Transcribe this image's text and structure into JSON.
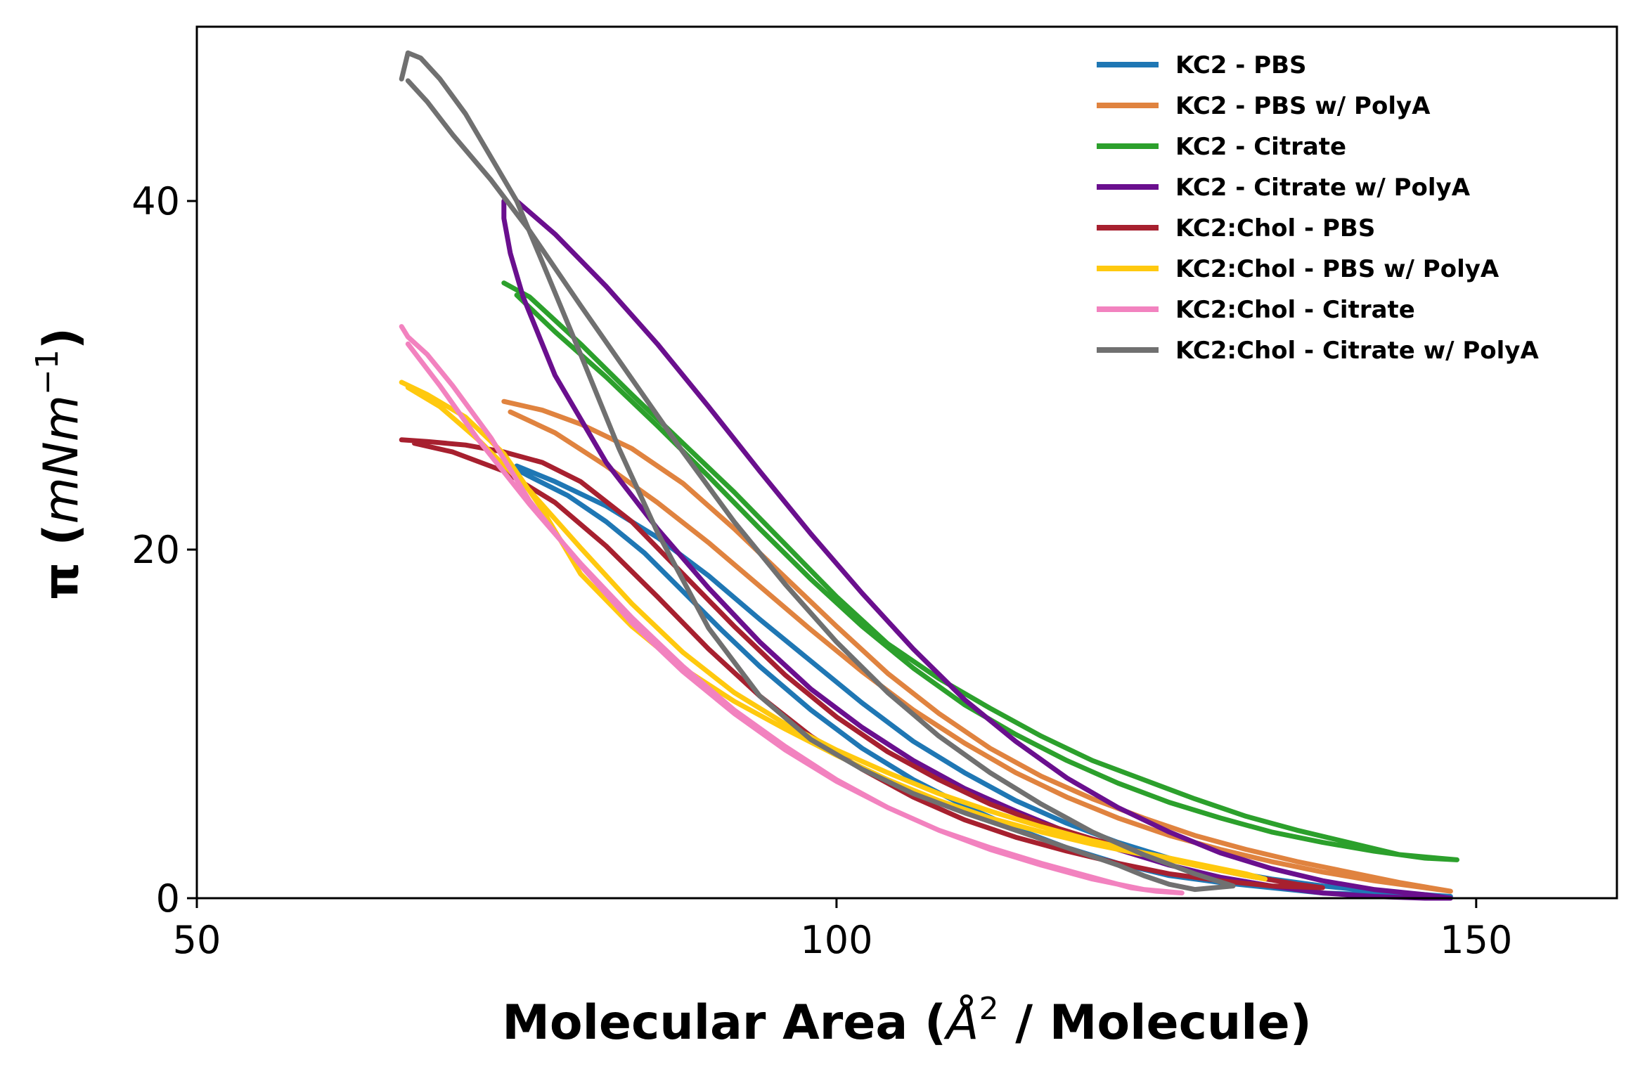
{
  "chart_data": {
    "type": "line",
    "xlabel_parts": [
      "Molecular Area (",
      "Å",
      "2",
      " / Molecule)"
    ],
    "ylabel_parts": [
      "π (",
      "mNm",
      "−1",
      ")"
    ],
    "xlim": [
      50,
      161
    ],
    "ylim": [
      0,
      50
    ],
    "xticks": [
      50,
      100,
      150
    ],
    "yticks": [
      0,
      20,
      40
    ],
    "grid": false,
    "legend_position": "top-right",
    "series": [
      {
        "name": "KC2 - PBS",
        "color": "#1f77b4",
        "x": [
          74,
          76,
          79,
          82,
          85,
          88,
          91,
          94,
          98,
          102,
          106,
          110,
          114,
          118,
          122,
          126,
          130,
          134,
          138,
          142,
          146,
          148,
          146,
          142,
          138,
          134,
          130,
          126,
          122,
          118,
          114,
          110,
          106,
          102,
          98,
          94,
          90,
          86,
          82,
          78,
          75
        ],
        "y": [
          25,
          24.2,
          23.1,
          21.6,
          19.8,
          17.6,
          15.4,
          13.3,
          10.8,
          8.6,
          6.8,
          5.3,
          4.0,
          2.9,
          2.0,
          1.3,
          0.9,
          0.6,
          0.3,
          0.2,
          0.1,
          0.1,
          0.2,
          0.4,
          0.7,
          1.1,
          1.6,
          2.3,
          3.2,
          4.3,
          5.6,
          7.2,
          9.0,
          11.2,
          13.6,
          16.0,
          18.5,
          20.7,
          22.5,
          23.9,
          24.8
        ]
      },
      {
        "name": "KC2 - PBS w/ PolyA",
        "color": "#e0833f",
        "x": [
          74,
          77,
          80,
          84,
          88,
          92,
          96,
          100,
          104,
          108,
          112,
          116,
          120,
          124,
          128,
          132,
          136,
          140,
          144,
          148,
          146,
          142,
          138,
          134,
          130,
          126,
          122,
          118,
          114,
          110,
          106,
          102,
          98,
          94,
          90,
          86,
          82,
          78,
          74.5
        ],
        "y": [
          28.5,
          28,
          27.2,
          25.8,
          23.8,
          21.2,
          18.4,
          15.6,
          12.9,
          10.6,
          8.6,
          7.0,
          5.7,
          4.6,
          3.6,
          2.8,
          2.1,
          1.5,
          0.9,
          0.4,
          0.6,
          1.0,
          1.5,
          2.1,
          2.8,
          3.6,
          4.6,
          5.8,
          7.2,
          8.9,
          10.8,
          13.0,
          15.4,
          17.9,
          20.4,
          22.7,
          24.8,
          26.7,
          27.9
        ]
      },
      {
        "name": "KC2 - Citrate",
        "color": "#2ca02c",
        "x": [
          74,
          76,
          80,
          84,
          88,
          92,
          96,
          100,
          104,
          108,
          112,
          116,
          120,
          124,
          128,
          132,
          136,
          140,
          144,
          147,
          148.5,
          146,
          142,
          138,
          134,
          130,
          126,
          122,
          118,
          114,
          110,
          106,
          102,
          98,
          94,
          90,
          86,
          82,
          78,
          75
        ],
        "y": [
          35.3,
          34.5,
          31.8,
          28.9,
          26.1,
          23.3,
          20.3,
          17.3,
          14.6,
          12.6,
          10.9,
          9.3,
          7.9,
          6.8,
          5.7,
          4.7,
          3.9,
          3.2,
          2.5,
          2.3,
          2.2,
          2.3,
          2.7,
          3.2,
          3.8,
          4.6,
          5.5,
          6.6,
          7.9,
          9.4,
          11.1,
          13.2,
          15.6,
          18.3,
          21.2,
          24.2,
          27.1,
          29.9,
          32.5,
          34.6
        ]
      },
      {
        "name": "KC2 - Citrate w/ PolyA",
        "color": "#6a0f8e",
        "x": [
          74,
          74,
          74.5,
          75.5,
          78,
          82,
          86,
          90,
          94,
          98,
          102,
          106,
          110,
          114,
          118,
          122,
          126,
          130,
          134,
          138,
          142,
          146,
          148,
          146,
          142,
          138,
          134,
          130,
          126,
          122,
          118,
          114,
          110,
          106,
          102,
          98,
          94,
          90,
          86,
          82,
          78,
          75
        ],
        "y": [
          40,
          39,
          37,
          34.5,
          30,
          25,
          21.2,
          17.8,
          14.7,
          12.0,
          9.8,
          7.9,
          6.3,
          5.0,
          3.8,
          2.8,
          1.9,
          1.2,
          0.7,
          0.3,
          0.1,
          0,
          0,
          0.2,
          0.5,
          1.0,
          1.7,
          2.6,
          3.8,
          5.2,
          6.9,
          9.0,
          11.4,
          14.3,
          17.5,
          20.9,
          24.5,
          28.2,
          31.8,
          35.1,
          38.1,
          40
        ]
      },
      {
        "name": "KC2:Chol - PBS",
        "color": "#a7202f",
        "x": [
          66,
          68,
          71,
          74,
          77,
          80,
          84,
          88,
          92,
          96,
          100,
          104,
          108,
          112,
          116,
          120,
          124,
          128,
          132,
          136,
          138,
          134,
          130,
          126,
          122,
          118,
          114,
          110,
          106,
          102,
          98,
          94,
          90,
          86,
          82,
          78,
          74,
          70,
          67
        ],
        "y": [
          26.3,
          26.2,
          26.0,
          25.6,
          25.0,
          23.9,
          21.6,
          18.6,
          15.6,
          12.8,
          10.4,
          8.4,
          6.8,
          5.4,
          4.3,
          3.4,
          2.6,
          1.9,
          1.3,
          0.8,
          0.6,
          0.7,
          1.0,
          1.4,
          2.0,
          2.7,
          3.5,
          4.5,
          5.8,
          7.4,
          9.3,
          11.6,
          14.3,
          17.3,
          20.2,
          22.7,
          24.5,
          25.6,
          26.1
        ]
      },
      {
        "name": "KC2:Chol - PBS w/ PolyA",
        "color": "#ffc90e",
        "x": [
          66,
          68,
          71,
          74,
          77,
          80,
          84,
          88,
          92,
          96,
          100,
          104,
          108,
          112,
          116,
          120,
          124,
          128,
          132,
          133.5,
          132,
          128,
          124,
          120,
          116,
          112,
          108,
          104,
          100,
          96,
          92,
          88,
          84,
          80,
          76,
          72,
          69,
          66.5
        ],
        "y": [
          29.6,
          28.9,
          27.6,
          25.5,
          22.3,
          18.6,
          15.6,
          13.2,
          11.3,
          9.7,
          8.2,
          6.8,
          5.6,
          4.6,
          3.8,
          3.1,
          2.5,
          1.9,
          1.3,
          1.1,
          1.4,
          2.0,
          2.6,
          3.3,
          4.1,
          5.0,
          6.0,
          7.2,
          8.5,
          10.0,
          11.8,
          14.1,
          16.9,
          20.1,
          23.4,
          26.3,
          28.2,
          29.3
        ]
      },
      {
        "name": "KC2:Chol - Citrate",
        "color": "#f282bf",
        "x": [
          66,
          66.5,
          68,
          70,
          73,
          76,
          80,
          84,
          88,
          92,
          96,
          100,
          104,
          108,
          112,
          116,
          120,
          123,
          125,
          127,
          124,
          120,
          116,
          112,
          108,
          104,
          100,
          96,
          92,
          88,
          84,
          80,
          76,
          72,
          69,
          66.5
        ],
        "y": [
          32.8,
          32.2,
          31.2,
          29.4,
          26.4,
          22.8,
          19.1,
          15.8,
          13.0,
          10.6,
          8.5,
          6.7,
          5.2,
          3.9,
          2.9,
          2.0,
          1.2,
          0.6,
          0.4,
          0.3,
          0.5,
          1.1,
          1.9,
          2.8,
          3.9,
          5.2,
          6.8,
          8.7,
          10.8,
          13.3,
          16.1,
          19.2,
          22.6,
          26.3,
          29.4,
          31.8
        ]
      },
      {
        "name": "KC2:Chol - Citrate w/ PolyA",
        "color": "#707070",
        "x": [
          66,
          66.5,
          67.5,
          69,
          71,
          73,
          75,
          77,
          80,
          83,
          86,
          90,
          94,
          98,
          102,
          106,
          110,
          114,
          118,
          122,
          124,
          126,
          128,
          131,
          128,
          124,
          120,
          116,
          112,
          108,
          104,
          100,
          96,
          92,
          88,
          84,
          80,
          76,
          73,
          70,
          68,
          66.5
        ],
        "y": [
          47,
          48.5,
          48.2,
          47,
          45,
          42.5,
          40,
          36.5,
          31.2,
          25.8,
          21.0,
          15.5,
          11.6,
          9.1,
          7.4,
          6.0,
          4.9,
          3.9,
          2.9,
          1.9,
          1.3,
          0.8,
          0.5,
          0.7,
          1.4,
          2.5,
          3.8,
          5.4,
          7.2,
          9.3,
          11.8,
          14.7,
          18.0,
          21.6,
          25.6,
          29.8,
          34.0,
          38.3,
          41.2,
          43.8,
          45.7,
          46.9
        ]
      }
    ]
  }
}
